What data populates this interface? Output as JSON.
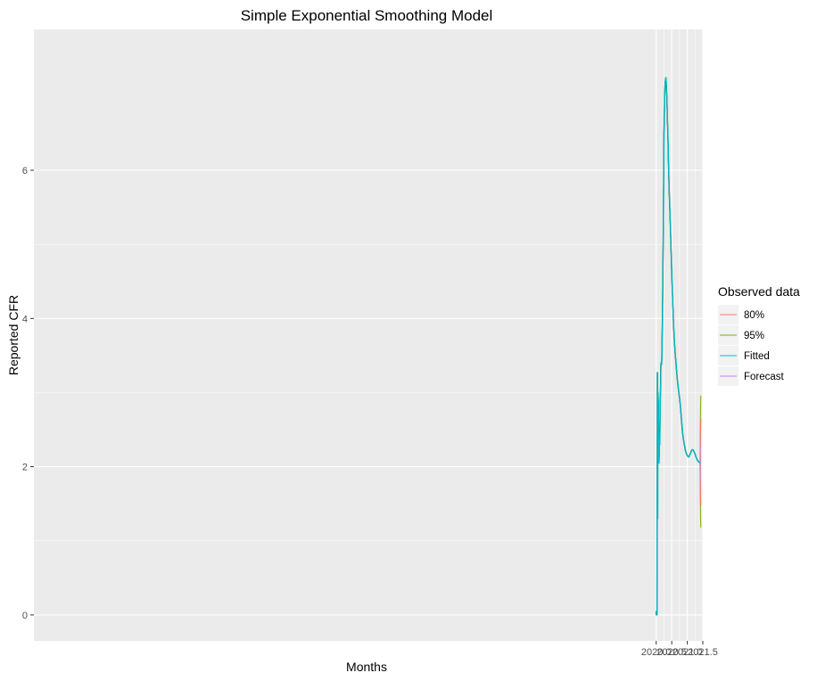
{
  "chart_data": {
    "type": "line",
    "title": "Simple Exponential Smoothing Model",
    "xlabel": "Months",
    "ylabel": "Reported CFR",
    "xlim": [
      1999.985,
      2021.5
    ],
    "ylim": [
      -0.35,
      7.9
    ],
    "x_ticks": [
      2020.0,
      2020.5,
      2021.0,
      2021.5
    ],
    "x_tick_labels": [
      "2020.0",
      "2020.5",
      "2021.0",
      "2021.5"
    ],
    "y_ticks": [
      0,
      2,
      4,
      6
    ],
    "y_tick_labels": [
      "0",
      "2",
      "4",
      "6"
    ],
    "grid": true,
    "legend": {
      "title": "Observed data",
      "position": "right",
      "entries": [
        {
          "label": "80%",
          "color": "#F8766D"
        },
        {
          "label": "95%",
          "color": "#7CAE00"
        },
        {
          "label": "Fitted",
          "color": "#00BFC4"
        },
        {
          "label": "Forecast",
          "color": "#C77CFF"
        }
      ]
    },
    "series": [
      {
        "role": "observed",
        "color": "#000000",
        "x": [
          2020.0,
          2020.005,
          2020.01,
          2020.015,
          2020.02,
          2020.022,
          2020.025,
          2020.028,
          2020.03,
          2020.033,
          2020.036,
          2020.039,
          2020.042,
          2020.045,
          2020.048,
          2020.05,
          2020.052,
          2020.054,
          2020.056,
          2020.058,
          2020.06,
          2020.062,
          2020.064,
          2020.066,
          2020.068,
          2020.072,
          2020.075,
          2020.08,
          2020.085,
          2020.09,
          2020.095,
          2020.1,
          2020.105,
          2020.11,
          2020.115,
          2020.12,
          2020.125,
          2020.13,
          2020.14,
          2020.15,
          2020.155,
          2020.16,
          2020.165,
          2020.17,
          2020.175,
          2020.18,
          2020.19,
          2020.2,
          2020.21,
          2020.22,
          2020.23,
          2020.24,
          2020.25,
          2020.26,
          2020.27,
          2020.275,
          2020.28,
          2020.29,
          2020.3,
          2020.31,
          2020.318,
          2020.325,
          2020.33,
          2020.335,
          2020.345,
          2020.36,
          2020.38,
          2020.4,
          2020.42,
          2020.44,
          2020.46,
          2020.48,
          2020.5,
          2020.52,
          2020.54,
          2020.56,
          2020.58,
          2020.6,
          2020.62,
          2020.64,
          2020.66,
          2020.68,
          2020.7,
          2020.72,
          2020.74,
          2020.76,
          2020.78,
          2020.8,
          2020.82,
          2020.84,
          2020.86,
          2020.88,
          2020.9,
          2020.92,
          2020.94,
          2020.96,
          2020.98,
          2021.0,
          2021.02,
          2021.04,
          2021.06,
          2021.08,
          2021.1,
          2021.12,
          2021.14,
          2021.16,
          2021.18,
          2021.2,
          2021.22,
          2021.24,
          2021.26,
          2021.28,
          2021.3,
          2021.32,
          2021.34,
          2021.36,
          2021.38,
          2021.4,
          2021.41
        ],
        "y": [
          0.05,
          0.0,
          0.0,
          0.0,
          0.0,
          0.0,
          0.0,
          1.7,
          1.7,
          1.7,
          3.27,
          3.27,
          3.0,
          1.6,
          1.3,
          2.8,
          2.5,
          3.0,
          2.6,
          2.9,
          2.7,
          2.95,
          2.8,
          2.6,
          2.9,
          2.2,
          2.1,
          2.15,
          2.05,
          2.05,
          2.15,
          2.2,
          2.45,
          2.3,
          2.3,
          2.5,
          2.7,
          2.8,
          3.1,
          3.35,
          3.4,
          3.4,
          3.38,
          3.4,
          3.38,
          3.45,
          3.7,
          4.0,
          4.4,
          4.8,
          5.3,
          5.9,
          6.5,
          6.7,
          6.9,
          7.0,
          7.1,
          7.2,
          7.2,
          7.25,
          7.22,
          7.15,
          7.1,
          7.05,
          6.95,
          6.7,
          6.4,
          6.0,
          5.7,
          5.45,
          5.2,
          4.9,
          4.6,
          4.35,
          4.12,
          3.9,
          3.73,
          3.6,
          3.48,
          3.38,
          3.27,
          3.18,
          3.1,
          3.03,
          2.96,
          2.9,
          2.8,
          2.7,
          2.6,
          2.5,
          2.42,
          2.36,
          2.31,
          2.27,
          2.22,
          2.19,
          2.17,
          2.15,
          2.14,
          2.13,
          2.14,
          2.16,
          2.18,
          2.2,
          2.22,
          2.23,
          2.23,
          2.22,
          2.2,
          2.18,
          2.16,
          2.13,
          2.11,
          2.09,
          2.08,
          2.07,
          2.06,
          2.06,
          2.06
        ]
      },
      {
        "role": "fitted",
        "color": "#00BFC4",
        "x": [
          2020.003,
          2020.008,
          2020.013,
          2020.018,
          2020.023,
          2020.025,
          2020.028,
          2020.031,
          2020.033,
          2020.036,
          2020.039,
          2020.042,
          2020.045,
          2020.048,
          2020.051,
          2020.053,
          2020.055,
          2020.057,
          2020.059,
          2020.061,
          2020.063,
          2020.065,
          2020.067,
          2020.069,
          2020.071,
          2020.075,
          2020.078,
          2020.083,
          2020.088,
          2020.093,
          2020.098,
          2020.103,
          2020.108,
          2020.113,
          2020.118,
          2020.123,
          2020.128,
          2020.133,
          2020.143,
          2020.153,
          2020.158,
          2020.163,
          2020.168,
          2020.173,
          2020.178,
          2020.183,
          2020.193,
          2020.203,
          2020.213,
          2020.223,
          2020.233,
          2020.243,
          2020.253,
          2020.263,
          2020.273,
          2020.278,
          2020.283,
          2020.293,
          2020.303,
          2020.313,
          2020.321,
          2020.328,
          2020.333,
          2020.338,
          2020.348,
          2020.363,
          2020.383,
          2020.403,
          2020.423,
          2020.443,
          2020.463,
          2020.483,
          2020.503,
          2020.523,
          2020.543,
          2020.563,
          2020.583,
          2020.603,
          2020.623,
          2020.643,
          2020.663,
          2020.683,
          2020.703,
          2020.723,
          2020.743,
          2020.763,
          2020.783,
          2020.803,
          2020.823,
          2020.843,
          2020.863,
          2020.883,
          2020.903,
          2020.923,
          2020.943,
          2020.963,
          2020.983,
          2021.003,
          2021.023,
          2021.043,
          2021.063,
          2021.083,
          2021.103,
          2021.123,
          2021.143,
          2021.163,
          2021.183,
          2021.203,
          2021.223,
          2021.243,
          2021.263,
          2021.283,
          2021.303,
          2021.323,
          2021.343,
          2021.363,
          2021.383,
          2021.403,
          2021.413
        ],
        "y": [
          0.05,
          0.0,
          0.0,
          0.0,
          0.0,
          0.0,
          0.0,
          1.7,
          1.7,
          1.7,
          3.27,
          3.27,
          3.0,
          1.6,
          1.3,
          2.8,
          2.5,
          3.0,
          2.6,
          2.9,
          2.7,
          2.95,
          2.8,
          2.6,
          2.9,
          2.2,
          2.1,
          2.15,
          2.05,
          2.05,
          2.15,
          2.2,
          2.45,
          2.3,
          2.3,
          2.5,
          2.7,
          2.8,
          3.1,
          3.35,
          3.4,
          3.4,
          3.38,
          3.4,
          3.38,
          3.45,
          3.7,
          4.0,
          4.4,
          4.8,
          5.3,
          5.9,
          6.5,
          6.7,
          6.9,
          7.0,
          7.1,
          7.2,
          7.2,
          7.25,
          7.22,
          7.15,
          7.1,
          7.05,
          6.95,
          6.7,
          6.4,
          6.0,
          5.7,
          5.45,
          5.2,
          4.9,
          4.6,
          4.35,
          4.12,
          3.9,
          3.73,
          3.6,
          3.48,
          3.38,
          3.27,
          3.18,
          3.1,
          3.03,
          2.96,
          2.9,
          2.8,
          2.7,
          2.6,
          2.5,
          2.42,
          2.36,
          2.31,
          2.27,
          2.22,
          2.19,
          2.17,
          2.15,
          2.14,
          2.13,
          2.14,
          2.16,
          2.18,
          2.2,
          2.22,
          2.23,
          2.23,
          2.22,
          2.2,
          2.18,
          2.16,
          2.13,
          2.11,
          2.09,
          2.08,
          2.07,
          2.06,
          2.06,
          2.06
        ]
      }
    ],
    "forecast": {
      "x": [
        2021.41,
        2021.415,
        2021.42,
        2021.425,
        2021.43,
        2021.436
      ],
      "mean": [
        2.06,
        2.06,
        2.06,
        2.06,
        2.06,
        2.06
      ],
      "lo80": [
        2.06,
        1.86,
        1.74,
        1.64,
        1.56,
        1.48
      ],
      "hi80": [
        2.06,
        2.26,
        2.38,
        2.48,
        2.56,
        2.64
      ],
      "lo95": [
        2.06,
        1.7,
        1.52,
        1.38,
        1.27,
        1.18
      ],
      "hi95": [
        2.06,
        2.42,
        2.6,
        2.74,
        2.85,
        2.96
      ]
    }
  }
}
